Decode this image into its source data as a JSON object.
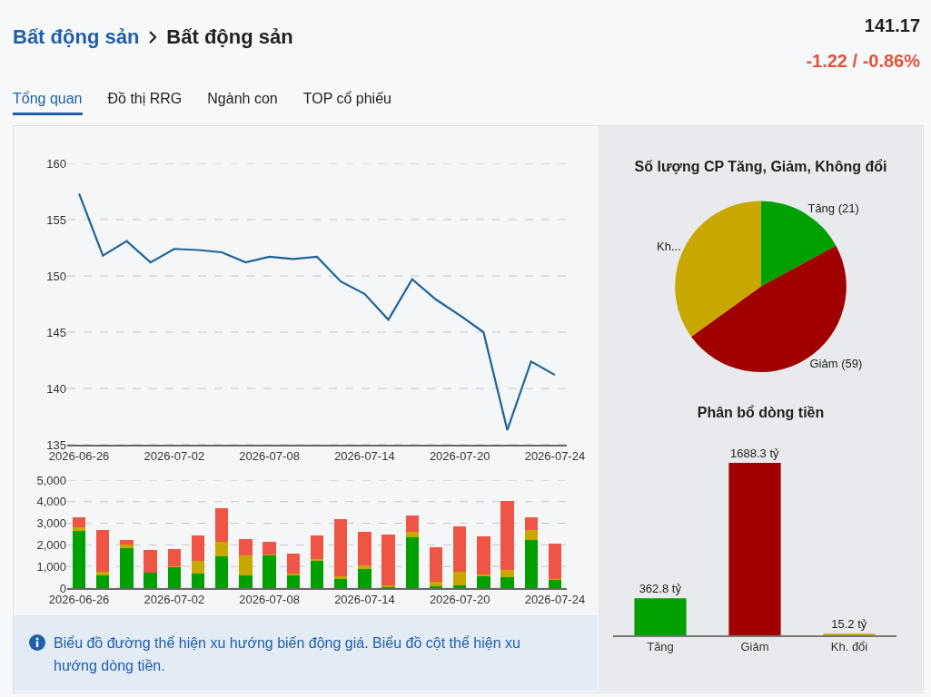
{
  "chart_data": [
    {
      "type": "other",
      "title": "Bất động sản",
      "subtitle": "Bất động sản",
      "annotations": [
        "141.17",
        "-1.22 / -0.86%",
        "Tổng quan",
        "Đồ thị RRG",
        "Ngành con",
        "TOP cổ phiếu"
      ]
    },
    {
      "type": "line",
      "categories": [
        "2026-06-26",
        null,
        null,
        null,
        "2026-07-02",
        null,
        null,
        null,
        "2026-07-08",
        null,
        null,
        null,
        "2026-07-14",
        null,
        null,
        null,
        "2026-07-20",
        null,
        null,
        null,
        "2026-07-24"
      ],
      "values": [
        157.3,
        151.8,
        153.1,
        151.2,
        152.4,
        152.3,
        152.1,
        151.2,
        151.7,
        151.5,
        151.7,
        149.5,
        148.4,
        146.1,
        149.7,
        147.9,
        146.5,
        145.0,
        136.3,
        142.4,
        141.2
      ],
      "color": "#1f6496",
      "ylim": [
        135,
        160
      ],
      "yticks": [
        135,
        140,
        145,
        150,
        155,
        160
      ],
      "grid": "y",
      "legend": false,
      "marker": "none",
      "line_style": "solid"
    },
    {
      "type": "bar",
      "stacked": true,
      "categories": [
        "2026-06-26",
        null,
        null,
        null,
        "2026-07-02",
        null,
        null,
        null,
        "2026-07-08",
        null,
        null,
        null,
        "2026-07-14",
        null,
        null,
        null,
        "2026-07-20",
        null,
        null,
        null,
        "2026-07-24"
      ],
      "series": [
        {
          "color": "#00a000",
          "values": [
            2660,
            600,
            1860,
            700,
            950,
            660,
            1450,
            600,
            1510,
            600,
            1260,
            400,
            900,
            30,
            2340,
            100,
            120,
            550,
            520,
            2230,
            370
          ]
        },
        {
          "color": "#c8a800",
          "values": [
            160,
            150,
            150,
            30,
            50,
            620,
            690,
            900,
            50,
            60,
            90,
            130,
            130,
            90,
            270,
            180,
            630,
            100,
            340,
            460,
            50
          ]
        },
        {
          "color": "#ee5544",
          "values": [
            470,
            1920,
            230,
            1050,
            810,
            1160,
            1560,
            790,
            600,
            920,
            1090,
            2680,
            1560,
            2370,
            750,
            1630,
            2090,
            1740,
            3190,
            600,
            1660
          ]
        }
      ],
      "ylim": [
        0,
        5000
      ],
      "yticks": [
        0,
        {
          "value": 1000,
          "label": "1,000"
        },
        {
          "value": 2000,
          "label": "2,000"
        },
        {
          "value": 3000,
          "label": "3,000"
        },
        {
          "value": 4000,
          "label": "4,000"
        },
        {
          "value": 5000,
          "label": "5,000"
        }
      ],
      "grid": "y",
      "legend": false,
      "annotations": [
        "Biểu đồ đường thể hiện xu hướng biến động giá. Biểu đồ cột thể hiện xu hướng dòng tiền."
      ]
    },
    {
      "type": "pie",
      "title": "Số lượng CP Tăng, Giảm, Không đổi",
      "categories": [
        "Tăng (21)",
        "Giảm (59)",
        "Kh..."
      ],
      "values": [
        21,
        59,
        43
      ],
      "colors": [
        "#00a000",
        "#a00000",
        "#c8a800"
      ],
      "legend": false
    },
    {
      "type": "bar",
      "title": "Phân bổ dòng tiền",
      "categories": [
        "Tăng",
        "Giảm",
        "Kh. đổi"
      ],
      "values": [
        362.8,
        1688.3,
        15.2
      ],
      "colors": [
        "#00a000",
        "#a00000",
        "#c8a800"
      ],
      "value_labels": [
        "362.8 tỷ",
        "1688.3 tỷ",
        "15.2 tỷ"
      ],
      "legend": false
    }
  ]
}
